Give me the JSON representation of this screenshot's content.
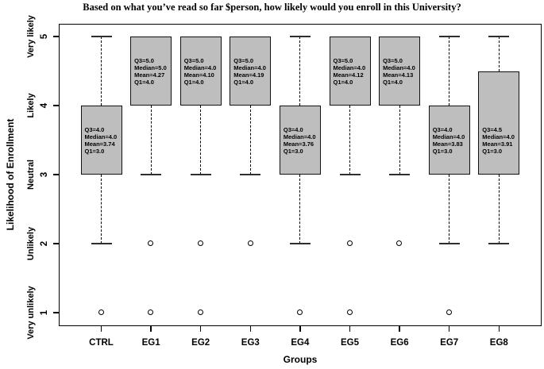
{
  "chart_data": {
    "type": "boxplot",
    "title": "Based on what you’ve read so far $person, how likely would you enroll in this University?",
    "xlabel": "Groups",
    "ylabel": "Likelihood of Enrollment",
    "ylim": [
      1,
      5
    ],
    "grid": false,
    "box_fill_color": "#bebebe",
    "y_ticks": [
      {
        "value": 5,
        "number": "5",
        "word": "Very likely"
      },
      {
        "value": 4,
        "number": "4",
        "word": "Likely"
      },
      {
        "value": 3,
        "number": "3",
        "word": "Neutral"
      },
      {
        "value": 2,
        "number": "2",
        "word": "Unlikely"
      },
      {
        "value": 1,
        "number": "1",
        "word": "Very unlikely"
      }
    ],
    "groups": [
      {
        "label": "CTRL",
        "q1": 3.0,
        "median": 4.0,
        "q3": 4.0,
        "mean": 3.74,
        "whisker_low": 2,
        "whisker_high": 5,
        "outliers": [
          1
        ],
        "annotation": [
          "Q3=4.0",
          "Median=4.0",
          "Mean=3.74",
          "Q1=3.0"
        ]
      },
      {
        "label": "EG1",
        "q1": 4.0,
        "median": 5.0,
        "q3": 5.0,
        "mean": 4.27,
        "whisker_low": 3,
        "whisker_high": 5,
        "outliers": [
          2,
          1
        ],
        "annotation": [
          "Q3=5.0",
          "Median=5.0",
          "Mean=4.27",
          "Q1=4.0"
        ]
      },
      {
        "label": "EG2",
        "q1": 4.0,
        "median": 4.0,
        "q3": 5.0,
        "mean": 4.1,
        "whisker_low": 3,
        "whisker_high": 5,
        "outliers": [
          2,
          1
        ],
        "annotation": [
          "Q3=5.0",
          "Median=4.0",
          "Mean=4.10",
          "Q1=4.0"
        ]
      },
      {
        "label": "EG3",
        "q1": 4.0,
        "median": 4.0,
        "q3": 5.0,
        "mean": 4.19,
        "whisker_low": 3,
        "whisker_high": 5,
        "outliers": [
          2
        ],
        "annotation": [
          "Q3=5.0",
          "Median=4.0",
          "Mean=4.19",
          "Q1=4.0"
        ]
      },
      {
        "label": "EG4",
        "q1": 3.0,
        "median": 4.0,
        "q3": 4.0,
        "mean": 3.76,
        "whisker_low": 2,
        "whisker_high": 5,
        "outliers": [
          1
        ],
        "annotation": [
          "Q3=4.0",
          "Median=4.0",
          "Mean=3.76",
          "Q1=3.0"
        ]
      },
      {
        "label": "EG5",
        "q1": 4.0,
        "median": 4.0,
        "q3": 5.0,
        "mean": 4.12,
        "whisker_low": 3,
        "whisker_high": 5,
        "outliers": [
          2,
          1
        ],
        "annotation": [
          "Q3=5.0",
          "Median=4.0",
          "Mean=4.12",
          "Q1=4.0"
        ]
      },
      {
        "label": "EG6",
        "q1": 4.0,
        "median": 4.0,
        "q3": 5.0,
        "mean": 4.13,
        "whisker_low": 3,
        "whisker_high": 5,
        "outliers": [
          2
        ],
        "annotation": [
          "Q3=5.0",
          "Median=4.0",
          "Mean=4.13",
          "Q1=4.0"
        ]
      },
      {
        "label": "EG7",
        "q1": 3.0,
        "median": 4.0,
        "q3": 4.0,
        "mean": 3.83,
        "whisker_low": 2,
        "whisker_high": 5,
        "outliers": [
          1
        ],
        "annotation": [
          "Q3=4.0",
          "Median=4.0",
          "Mean=3.83",
          "Q1=3.0"
        ]
      },
      {
        "label": "EG8",
        "q1": 3.0,
        "median": 4.0,
        "q3": 4.5,
        "mean": 3.91,
        "whisker_low": 2,
        "whisker_high": 5,
        "outliers": [],
        "annotation": [
          "Q3=4.5",
          "Median=4.0",
          "Mean=3.91",
          "Q1=3.0"
        ]
      }
    ]
  }
}
